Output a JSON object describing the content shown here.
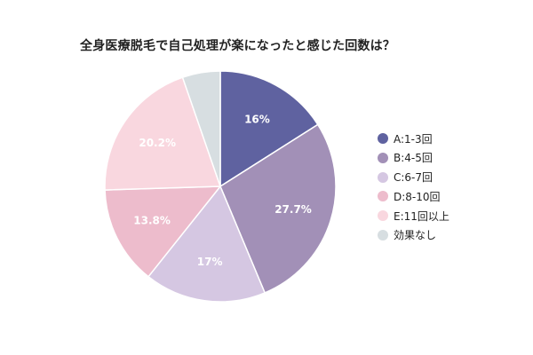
{
  "chart_data": {
    "type": "pie",
    "title": "全身医療脱毛で自己処理が楽になったと感じた回数は？",
    "categories": [
      "A:1-3回",
      "B:4-5回",
      "C:6-7回",
      "D:8-10回",
      "E:11回以上",
      "効果なし"
    ],
    "values": [
      16,
      27.7,
      17,
      13.8,
      20.2,
      5.3
    ],
    "data_labels": [
      "16%",
      "27.7%",
      "17%",
      "13.8%",
      "20.2%",
      ""
    ],
    "colors": [
      "#5f62a0",
      "#a290b7",
      "#d5c7e2",
      "#edbccc",
      "#f9d7df",
      "#d7dee1"
    ],
    "legend_position": "right",
    "start_angle": "top",
    "direction": "clockwise"
  }
}
